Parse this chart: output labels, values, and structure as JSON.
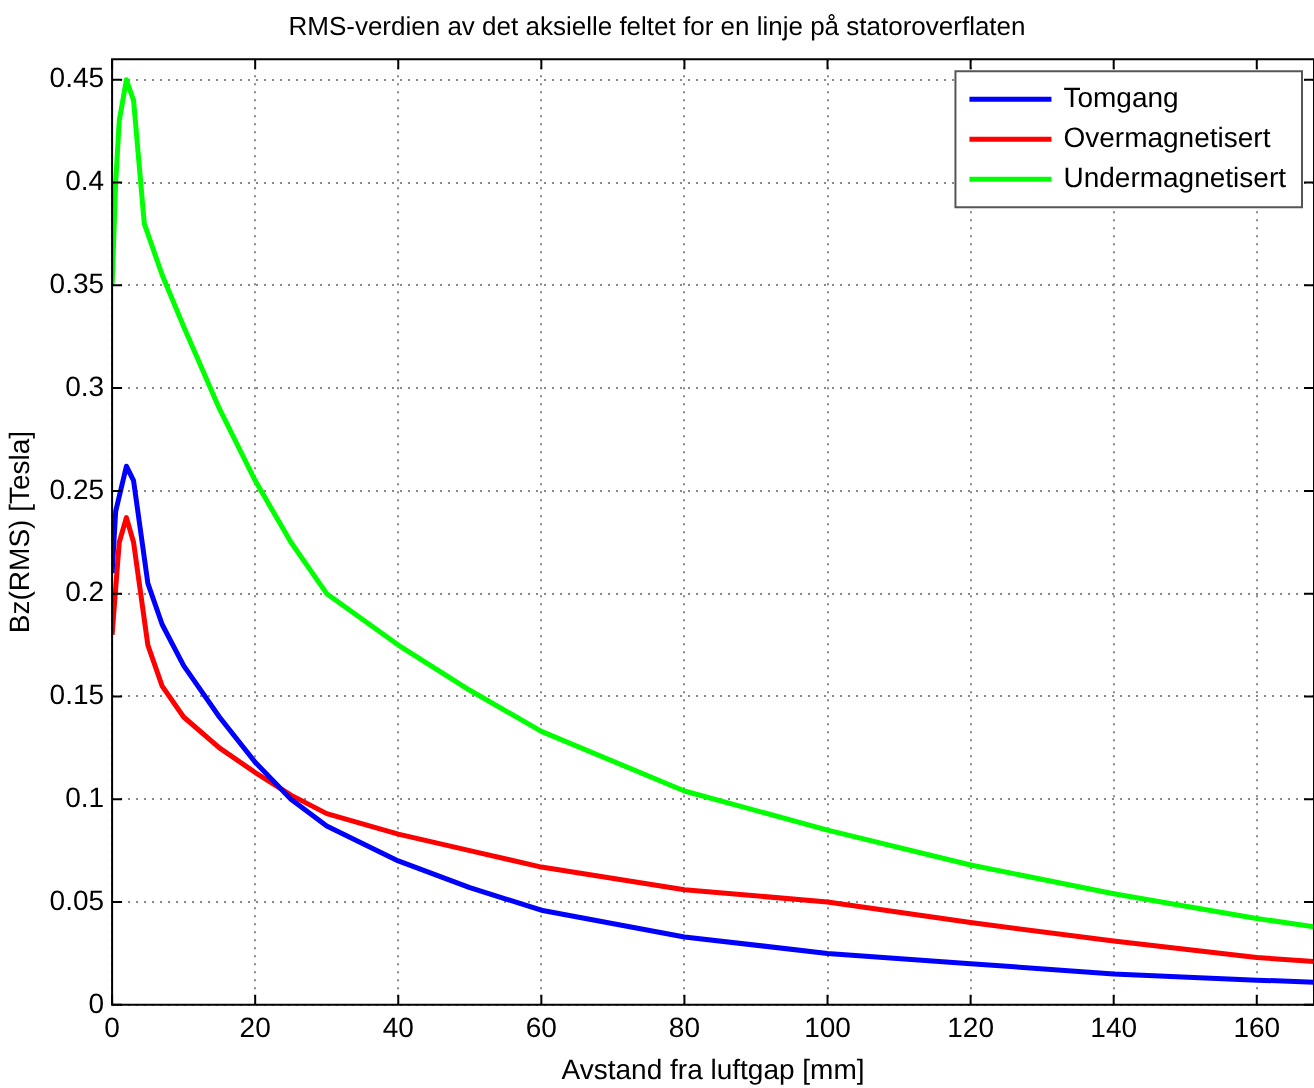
{
  "chart_data": {
    "type": "line",
    "title": "RMS-verdien av det aksielle feltet for en linje på statoroverflaten",
    "xlabel": "Avstand fra luftgap [mm]",
    "ylabel": "Bz(RMS) [Tesla]",
    "xlim": [
      0,
      168
    ],
    "xticks": [
      0,
      20,
      40,
      60,
      80,
      100,
      120,
      140,
      160
    ],
    "ylim": [
      0,
      0.46
    ],
    "yticks": [
      0,
      0.05,
      0.1,
      0.15,
      0.2,
      0.25,
      0.3,
      0.35,
      0.4,
      0.45
    ],
    "grid": true,
    "legend": "top right",
    "marker": "none",
    "line_style": "solid",
    "series": [
      {
        "name": "Tomgang",
        "color": "#0000ff",
        "x": [
          0,
          0.5,
          2,
          3,
          4,
          5,
          7,
          10,
          12,
          15,
          20,
          25,
          30,
          40,
          50,
          60,
          80,
          100,
          120,
          140,
          160,
          168
        ],
        "values": [
          0.21,
          0.24,
          0.262,
          0.255,
          0.23,
          0.205,
          0.185,
          0.165,
          0.155,
          0.14,
          0.118,
          0.1,
          0.087,
          0.07,
          0.057,
          0.046,
          0.033,
          0.025,
          0.02,
          0.015,
          0.012,
          0.011
        ]
      },
      {
        "name": "Overmagnetisert",
        "color": "#ff0000",
        "x": [
          0,
          1,
          2,
          3,
          4,
          5,
          7,
          10,
          15,
          20,
          25,
          30,
          40,
          50,
          60,
          80,
          100,
          120,
          140,
          160,
          168
        ],
        "values": [
          0.18,
          0.225,
          0.237,
          0.225,
          0.2,
          0.175,
          0.155,
          0.14,
          0.125,
          0.113,
          0.102,
          0.093,
          0.083,
          0.075,
          0.067,
          0.056,
          0.05,
          0.04,
          0.031,
          0.023,
          0.021
        ]
      },
      {
        "name": "Undermagnetisert",
        "color": "#00ff00",
        "x": [
          0,
          0.5,
          1,
          2,
          3,
          4,
          4.5,
          7,
          10,
          15,
          20,
          25,
          30,
          40,
          50,
          60,
          80,
          100,
          120,
          140,
          160,
          168
        ],
        "values": [
          0.35,
          0.4,
          0.43,
          0.45,
          0.44,
          0.4,
          0.38,
          0.355,
          0.33,
          0.29,
          0.255,
          0.225,
          0.2,
          0.175,
          0.153,
          0.133,
          0.104,
          0.085,
          0.068,
          0.054,
          0.042,
          0.038
        ]
      }
    ]
  }
}
